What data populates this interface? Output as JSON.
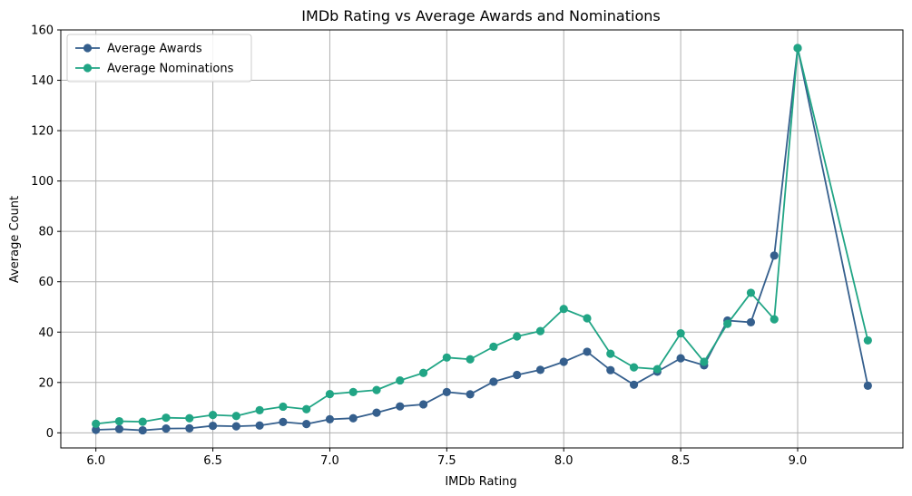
{
  "chart_data": {
    "type": "line",
    "title": "IMDb Rating vs Average Awards and Nominations",
    "xlabel": "IMDb Rating",
    "ylabel": "Average Count",
    "xlim": [
      5.85,
      9.45
    ],
    "ylim": [
      -6,
      160
    ],
    "xticks": [
      6.0,
      6.5,
      7.0,
      7.5,
      8.0,
      8.5,
      9.0
    ],
    "xtick_labels": [
      "6.0",
      "6.5",
      "7.0",
      "7.5",
      "8.0",
      "8.5",
      "9.0"
    ],
    "yticks": [
      0,
      20,
      40,
      60,
      80,
      100,
      120,
      140,
      160
    ],
    "ytick_labels": [
      "0",
      "20",
      "40",
      "60",
      "80",
      "100",
      "120",
      "140",
      "160"
    ],
    "grid": true,
    "legend_position": "top-left",
    "x": [
      6.0,
      6.1,
      6.2,
      6.3,
      6.4,
      6.5,
      6.6,
      6.7,
      6.8,
      6.9,
      7.0,
      7.1,
      7.2,
      7.3,
      7.4,
      7.5,
      7.6,
      7.7,
      7.8,
      7.9,
      8.0,
      8.1,
      8.2,
      8.3,
      8.4,
      8.5,
      8.6,
      8.7,
      8.8,
      8.9,
      9.0,
      9.3
    ],
    "series": [
      {
        "name": "Average Awards",
        "color": "#355f8d",
        "values": [
          1.2,
          1.5,
          1.0,
          1.7,
          1.8,
          2.8,
          2.6,
          2.9,
          4.3,
          3.5,
          5.4,
          5.8,
          8.0,
          10.5,
          11.3,
          16.2,
          15.3,
          20.3,
          23.0,
          25.0,
          28.2,
          32.2,
          24.9,
          19.1,
          24.3,
          29.6,
          26.8,
          44.6,
          43.9,
          70.4,
          152.8,
          18.7
        ]
      },
      {
        "name": "Average Nominations",
        "color": "#21a585",
        "values": [
          3.6,
          4.6,
          4.4,
          6.0,
          5.8,
          7.1,
          6.7,
          9.0,
          10.4,
          9.4,
          15.4,
          16.2,
          17.0,
          20.8,
          23.8,
          29.9,
          29.2,
          34.2,
          38.3,
          40.4,
          49.2,
          45.5,
          31.4,
          26.0,
          25.3,
          39.5,
          28.2,
          43.3,
          55.6,
          45.1,
          152.8,
          36.7
        ]
      }
    ]
  }
}
